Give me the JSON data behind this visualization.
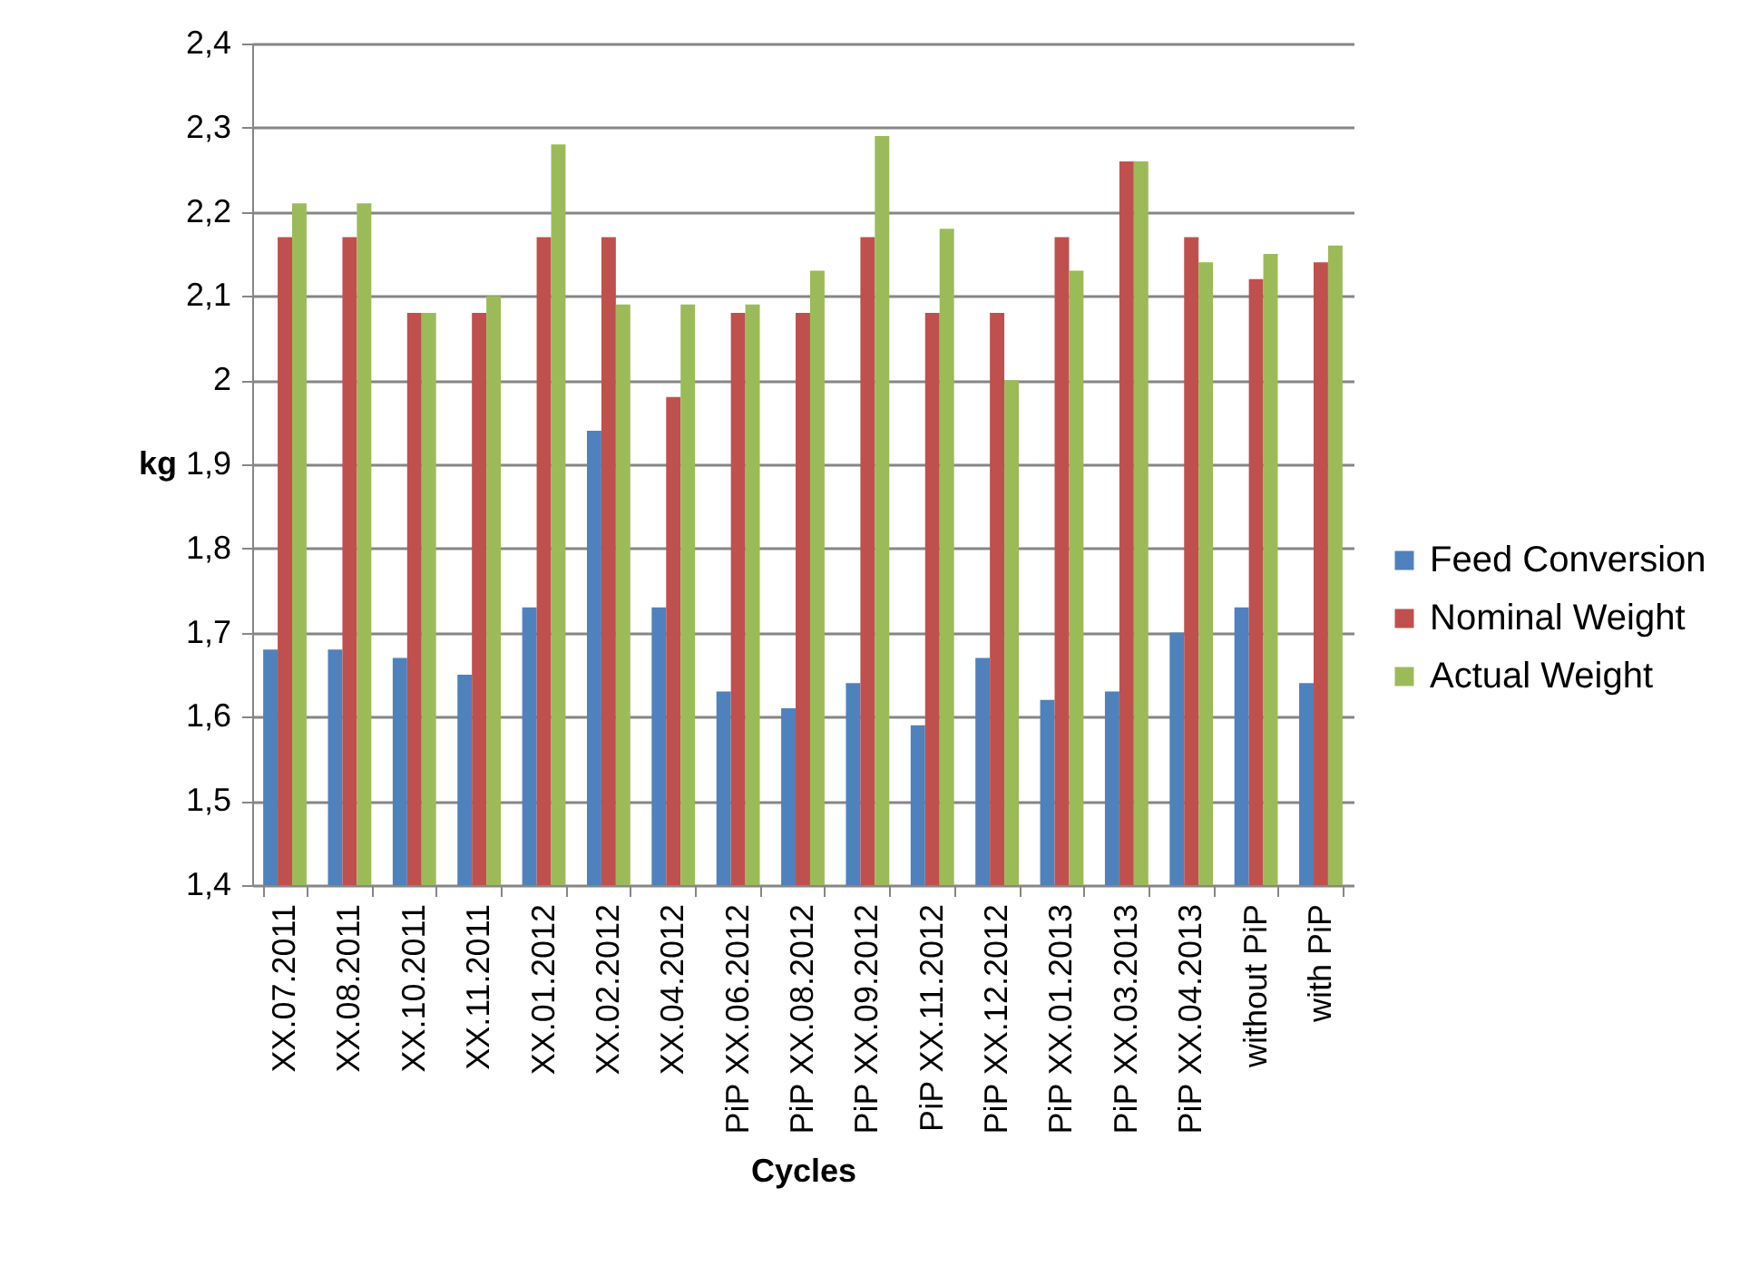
{
  "chart_data": {
    "type": "bar",
    "xlabel": "Cycles",
    "ylabel": "kg",
    "categories": [
      "XX.07.2011",
      "XX.08.2011",
      "XX.10.2011",
      "XX.11.2011",
      "XX.01.2012",
      "XX.02.2012",
      "XX.04.2012",
      "PiP XX.06.2012",
      "PiP XX.08.2012",
      "PiP XX.09.2012",
      "PiP XX.11.2012",
      "PiP XX.12.2012",
      "PiP XX.01.2013",
      "PiP XX.03.2013",
      "PiP XX.04.2013",
      "without PiP",
      "with PiP"
    ],
    "series": [
      {
        "name": "Feed Conversion",
        "color": "#4f81bd",
        "values": [
          1.68,
          1.68,
          1.67,
          1.65,
          1.73,
          1.94,
          1.73,
          1.63,
          1.61,
          1.64,
          1.59,
          1.67,
          1.62,
          1.63,
          1.7,
          1.73,
          1.64
        ]
      },
      {
        "name": "Nominal Weight",
        "color": "#c0504d",
        "values": [
          2.17,
          2.17,
          2.08,
          2.08,
          2.17,
          2.17,
          1.98,
          2.08,
          2.08,
          2.17,
          2.08,
          2.08,
          2.17,
          2.26,
          2.17,
          2.12,
          2.14
        ]
      },
      {
        "name": "Actual Weight",
        "color": "#9bbb59",
        "values": [
          2.21,
          2.21,
          2.08,
          2.1,
          2.28,
          2.09,
          2.09,
          2.09,
          2.13,
          2.29,
          2.18,
          2.0,
          2.13,
          2.26,
          2.14,
          2.15,
          2.16
        ]
      }
    ],
    "ylim": [
      1.4,
      2.4
    ],
    "yticks": [
      {
        "value": 1.4,
        "label": "1,4"
      },
      {
        "value": 1.5,
        "label": "1,5"
      },
      {
        "value": 1.6,
        "label": "1,6"
      },
      {
        "value": 1.7,
        "label": "1,7"
      },
      {
        "value": 1.8,
        "label": "1,8"
      },
      {
        "value": 1.9,
        "label": "1,9"
      },
      {
        "value": 2,
        "label": "2"
      },
      {
        "value": 2.1,
        "label": "2,1"
      },
      {
        "value": 2.2,
        "label": "2,2"
      },
      {
        "value": 2.3,
        "label": "2,3"
      },
      {
        "value": 2.4,
        "label": "2,4"
      }
    ],
    "grid": "y",
    "legend": "right"
  }
}
